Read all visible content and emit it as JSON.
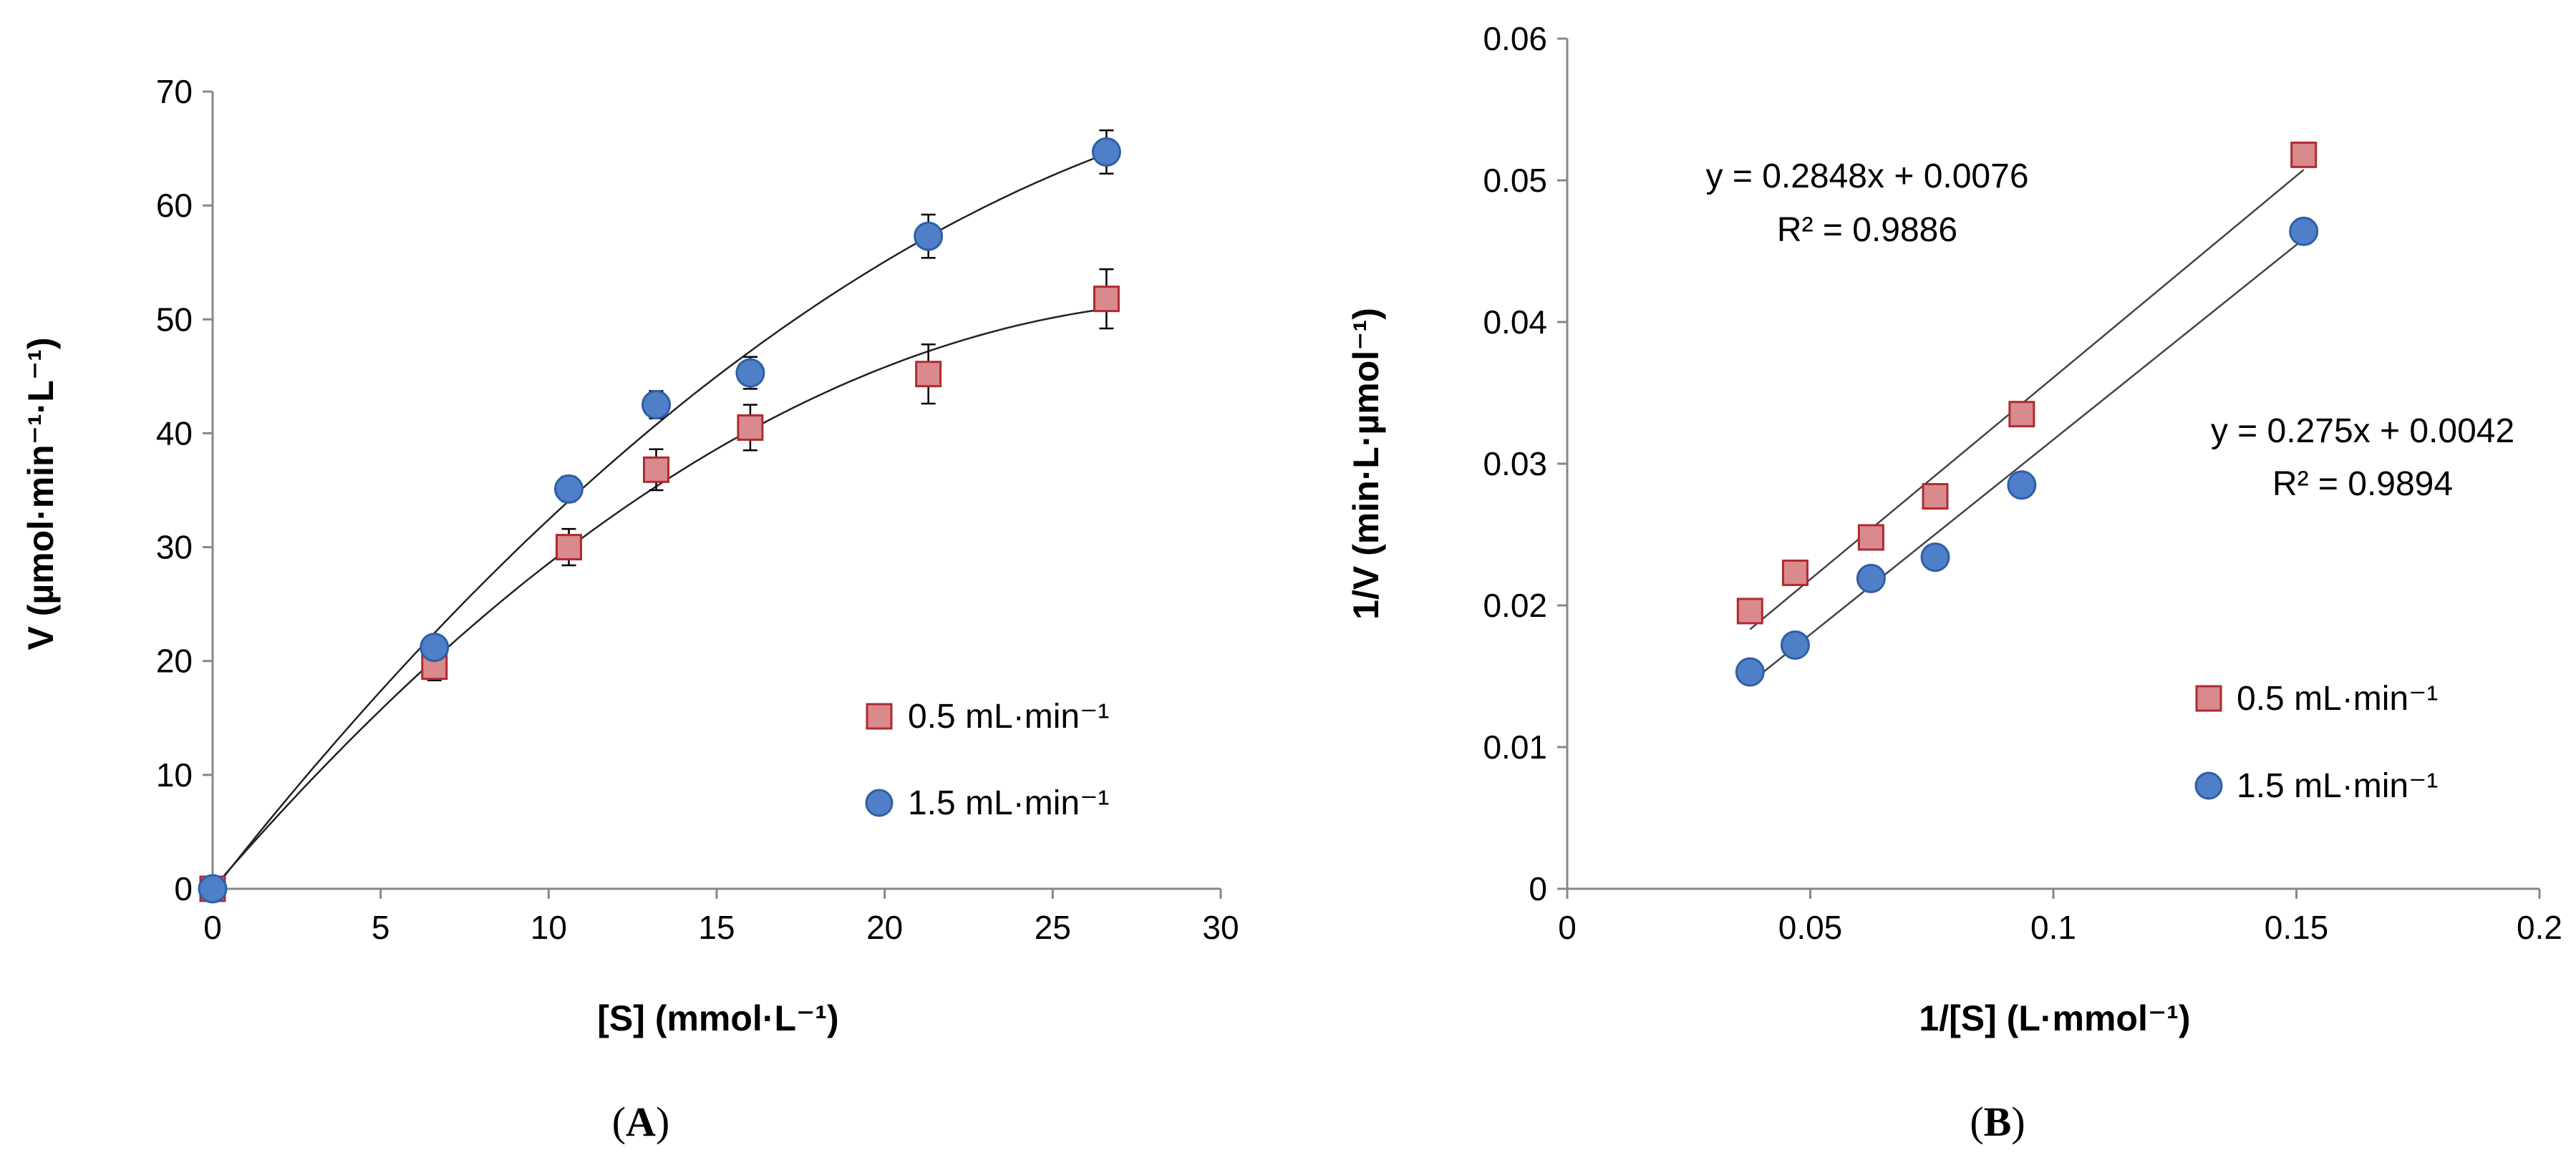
{
  "chart_data": [
    {
      "panel_label": "A",
      "type": "scatter",
      "xlabel": "[S] (mmol·L⁻¹)",
      "ylabel": "V (µmol·min⁻¹·L⁻¹)",
      "xlim": [
        0,
        30
      ],
      "ylim": [
        0,
        70
      ],
      "xticks": [
        "0",
        "5",
        "10",
        "15",
        "20",
        "25",
        "30"
      ],
      "yticks": [
        "0",
        "10",
        "20",
        "30",
        "40",
        "50",
        "60",
        "70"
      ],
      "grid": false,
      "legend_position": "bottom-right",
      "trendlines": "smooth curve per series",
      "series": [
        {
          "name": "0.5 mL·min⁻¹",
          "marker": "square",
          "color": "#d98a8c",
          "x": [
            0,
            6.6,
            10.6,
            13.2,
            16.0,
            21.3,
            26.6
          ],
          "y": [
            0,
            19.5,
            30.0,
            36.8,
            40.5,
            45.2,
            51.8
          ],
          "error": [
            0,
            1.2,
            1.6,
            1.8,
            2.0,
            2.6,
            2.6
          ]
        },
        {
          "name": "1.5 mL·min⁻¹",
          "marker": "circle",
          "color": "#4f7fc6",
          "x": [
            0,
            6.6,
            10.6,
            13.2,
            16.0,
            21.3,
            26.6
          ],
          "y": [
            0,
            21.2,
            35.1,
            42.5,
            45.3,
            57.3,
            64.7
          ],
          "error": [
            0,
            0.9,
            1.1,
            1.2,
            1.4,
            1.9,
            1.9
          ]
        }
      ]
    },
    {
      "panel_label": "B",
      "type": "scatter",
      "xlabel": "1/[S] (L·mmol⁻¹)",
      "ylabel": "1/V (min·L·µmol⁻¹)",
      "xlim": [
        0,
        0.2
      ],
      "ylim": [
        0,
        0.06
      ],
      "xticks": [
        "0",
        "0.05",
        "0.1",
        "0.15",
        "0.2"
      ],
      "yticks": [
        "0",
        "0.01",
        "0.02",
        "0.03",
        "0.04",
        "0.05",
        "0.06"
      ],
      "grid": false,
      "legend_position": "bottom-right",
      "series": [
        {
          "name": "0.5 mL·min⁻¹",
          "marker": "square",
          "color": "#d98a8c",
          "x": [
            0.0376,
            0.0469,
            0.0625,
            0.0757,
            0.0935,
            0.1515
          ],
          "y": [
            0.0196,
            0.0223,
            0.0248,
            0.0277,
            0.0335,
            0.0518
          ],
          "trendline": {
            "slope": 0.2848,
            "intercept": 0.0076,
            "x_range": [
              0.0376,
              0.1515
            ]
          },
          "equation": "y = 0.2848x + 0.0076",
          "r2": "R² = 0.9886"
        },
        {
          "name": "1.5 mL·min⁻¹",
          "marker": "circle",
          "color": "#4f7fc6",
          "x": [
            0.0376,
            0.0469,
            0.0625,
            0.0757,
            0.0935,
            0.1515
          ],
          "y": [
            0.0153,
            0.0172,
            0.0219,
            0.0234,
            0.0285,
            0.0464
          ],
          "trendline": {
            "slope": 0.275,
            "intercept": 0.0042,
            "x_range": [
              0.0376,
              0.1515
            ]
          },
          "equation": "y = 0.275x + 0.0042",
          "r2": "R² = 0.9894"
        }
      ]
    }
  ]
}
